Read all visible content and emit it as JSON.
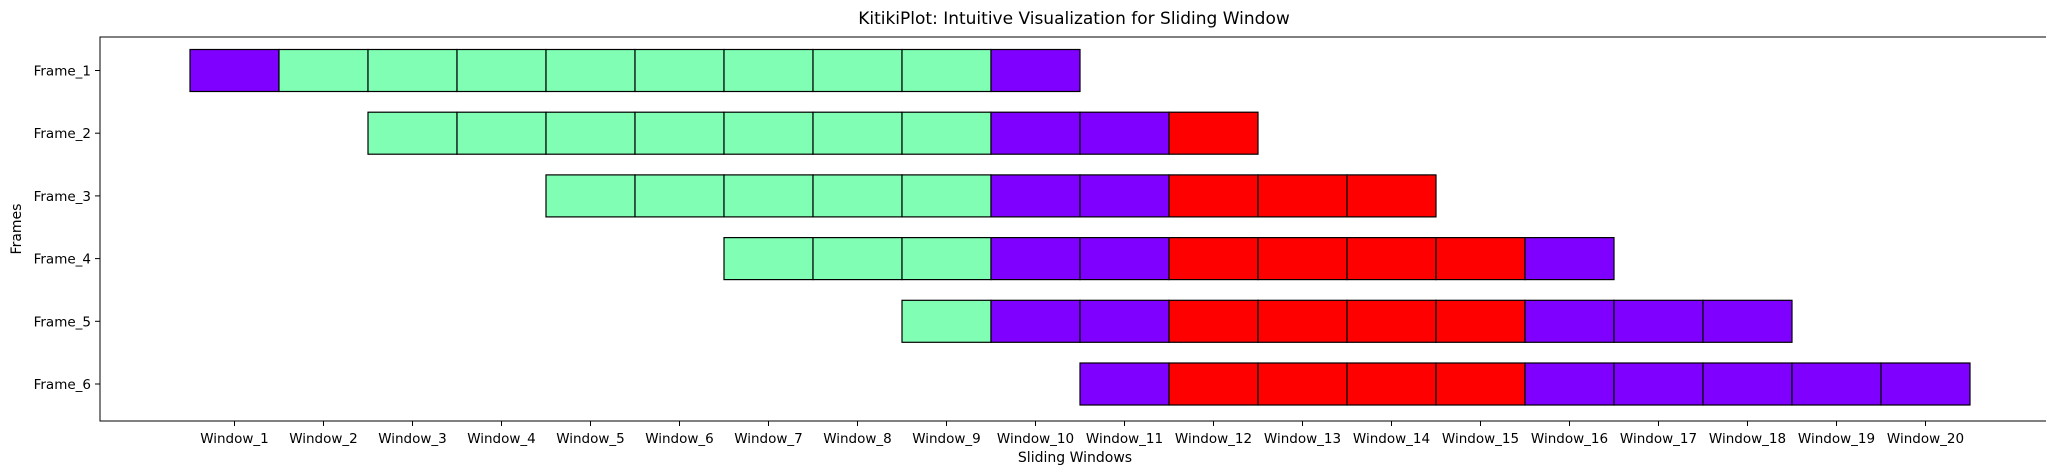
{
  "chart_data": {
    "type": "heatmap",
    "title": "KitikiPlot: Intuitive Visualization for Sliding Window",
    "xlabel": "Sliding Windows",
    "ylabel": "Frames",
    "categories": [
      "Window_1",
      "Window_2",
      "Window_3",
      "Window_4",
      "Window_5",
      "Window_6",
      "Window_7",
      "Window_8",
      "Window_9",
      "Window_10",
      "Window_11",
      "Window_12",
      "Window_13",
      "Window_14",
      "Window_15",
      "Window_16",
      "Window_17",
      "Window_18",
      "Window_19",
      "Window_20"
    ],
    "frames": [
      "Frame_1",
      "Frame_2",
      "Frame_3",
      "Frame_4",
      "Frame_5",
      "Frame_6"
    ],
    "colors": {
      "purple": "#8000ff",
      "mint": "#80ffb4",
      "red": "#ff0000"
    },
    "rows": [
      {
        "frame": "Frame_1",
        "start": 1,
        "cells": [
          "purple",
          "mint",
          "mint",
          "mint",
          "mint",
          "mint",
          "mint",
          "mint",
          "mint",
          "purple"
        ]
      },
      {
        "frame": "Frame_2",
        "start": 3,
        "cells": [
          "mint",
          "mint",
          "mint",
          "mint",
          "mint",
          "mint",
          "mint",
          "purple",
          "purple",
          "red"
        ]
      },
      {
        "frame": "Frame_3",
        "start": 5,
        "cells": [
          "mint",
          "mint",
          "mint",
          "mint",
          "mint",
          "purple",
          "purple",
          "red",
          "red",
          "red"
        ]
      },
      {
        "frame": "Frame_4",
        "start": 7,
        "cells": [
          "mint",
          "mint",
          "mint",
          "purple",
          "purple",
          "red",
          "red",
          "red",
          "red",
          "purple"
        ]
      },
      {
        "frame": "Frame_5",
        "start": 9,
        "cells": [
          "mint",
          "purple",
          "purple",
          "red",
          "red",
          "red",
          "red",
          "purple",
          "purple",
          "purple"
        ]
      },
      {
        "frame": "Frame_6",
        "start": 11,
        "cells": [
          "purple",
          "red",
          "red",
          "red",
          "red",
          "purple",
          "purple",
          "purple",
          "purple",
          "purple"
        ]
      }
    ],
    "grid": false,
    "legend": "none"
  }
}
